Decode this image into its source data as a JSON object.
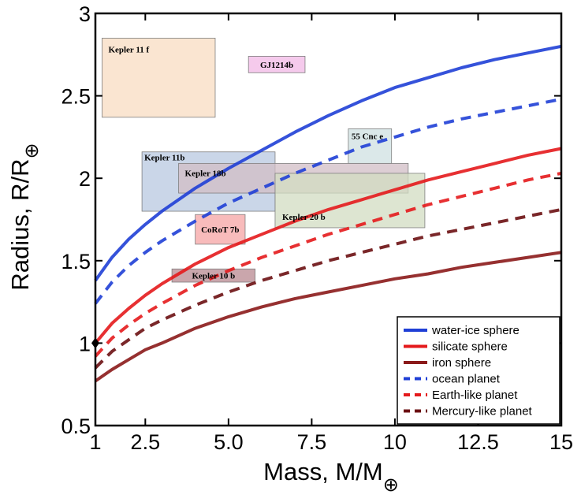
{
  "chart_data": {
    "type": "line",
    "title": "",
    "xlabel": "Mass, M/M",
    "xlabel_sub": "⊕",
    "ylabel": "Radius, R/R",
    "ylabel_sub": "⊕",
    "xlim": [
      1,
      15
    ],
    "ylim": [
      0.5,
      3
    ],
    "xticks": [
      1,
      2.5,
      5.0,
      7.5,
      10,
      12.5,
      15
    ],
    "xtick_labels": [
      "1",
      "2.5",
      "5.0",
      "7.5",
      "10",
      "12.5",
      "15"
    ],
    "yticks": [
      0.5,
      1,
      1.5,
      2,
      2.5,
      3
    ],
    "ytick_labels": [
      "0.5",
      "1",
      "1.5",
      "2",
      "2.5",
      "3"
    ],
    "x": [
      1,
      1.5,
      2,
      2.5,
      3,
      4,
      5,
      6,
      7,
      8,
      9,
      10,
      11,
      12,
      13,
      14,
      15
    ],
    "series": [
      {
        "name": "water-ice sphere",
        "color": "#1f3fd6",
        "dash": "solid",
        "values": [
          1.38,
          1.52,
          1.63,
          1.72,
          1.8,
          1.94,
          2.06,
          2.17,
          2.28,
          2.38,
          2.47,
          2.55,
          2.61,
          2.67,
          2.72,
          2.76,
          2.8
        ]
      },
      {
        "name": "silicate sphere",
        "color": "#e41a1c",
        "dash": "solid",
        "values": [
          1.0,
          1.12,
          1.21,
          1.29,
          1.36,
          1.48,
          1.58,
          1.66,
          1.74,
          1.81,
          1.87,
          1.93,
          1.99,
          2.04,
          2.09,
          2.14,
          2.18
        ]
      },
      {
        "name": "iron sphere",
        "color": "#8b1a1a",
        "dash": "solid",
        "values": [
          0.77,
          0.84,
          0.9,
          0.96,
          1.0,
          1.09,
          1.16,
          1.22,
          1.27,
          1.31,
          1.35,
          1.39,
          1.42,
          1.46,
          1.49,
          1.52,
          1.55
        ]
      },
      {
        "name": "ocean planet",
        "color": "#1f3fd6",
        "dash": "dashed",
        "values": [
          1.24,
          1.37,
          1.47,
          1.55,
          1.62,
          1.74,
          1.85,
          1.94,
          2.03,
          2.11,
          2.19,
          2.25,
          2.31,
          2.36,
          2.4,
          2.44,
          2.48
        ]
      },
      {
        "name": "Earth-like planet",
        "color": "#e41a1c",
        "dash": "dashed",
        "values": [
          0.92,
          1.03,
          1.11,
          1.18,
          1.24,
          1.35,
          1.44,
          1.52,
          1.59,
          1.66,
          1.72,
          1.78,
          1.84,
          1.89,
          1.94,
          1.99,
          2.03
        ]
      },
      {
        "name": "Mercury-like planet",
        "color": "#6b0f12",
        "dash": "dashed",
        "values": [
          0.85,
          0.95,
          1.02,
          1.09,
          1.14,
          1.23,
          1.31,
          1.38,
          1.44,
          1.5,
          1.55,
          1.6,
          1.65,
          1.69,
          1.73,
          1.77,
          1.81
        ]
      }
    ],
    "planets": [
      {
        "name": "Kepler 11 f",
        "m_range": [
          1.2,
          4.6
        ],
        "r_range": [
          2.37,
          2.85
        ],
        "color": "#f8dcc2"
      },
      {
        "name": "GJ1214b",
        "m_range": [
          5.6,
          7.3
        ],
        "r_range": [
          2.64,
          2.74
        ],
        "color": "#f2b8e6"
      },
      {
        "name": "55 Cnc e",
        "m_range": [
          8.6,
          9.9
        ],
        "r_range": [
          2.09,
          2.3
        ],
        "color": "#cfe0e2"
      },
      {
        "name": "Kepler 11b",
        "m_range": [
          2.4,
          6.4
        ],
        "r_range": [
          1.8,
          2.16
        ],
        "color": "#b8c8e0"
      },
      {
        "name": "Kepler 18b",
        "m_range": [
          3.5,
          10.4
        ],
        "r_range": [
          1.91,
          2.09
        ],
        "color": "#d2bec6"
      },
      {
        "name": "Kepler 20 b",
        "m_range": [
          6.4,
          10.9
        ],
        "r_range": [
          1.7,
          2.03
        ],
        "color": "#d2dcc2"
      },
      {
        "name": "CoRoT 7b",
        "m_range": [
          4.0,
          5.5
        ],
        "r_range": [
          1.6,
          1.78
        ],
        "color": "#f6a4a4"
      },
      {
        "name": "Kepler 10 b",
        "m_range": [
          3.3,
          5.8
        ],
        "r_range": [
          1.37,
          1.45
        ],
        "color": "#b88890"
      }
    ],
    "earth_point": {
      "mass": 1,
      "radius": 1
    },
    "legend_position": "bottom-right"
  }
}
